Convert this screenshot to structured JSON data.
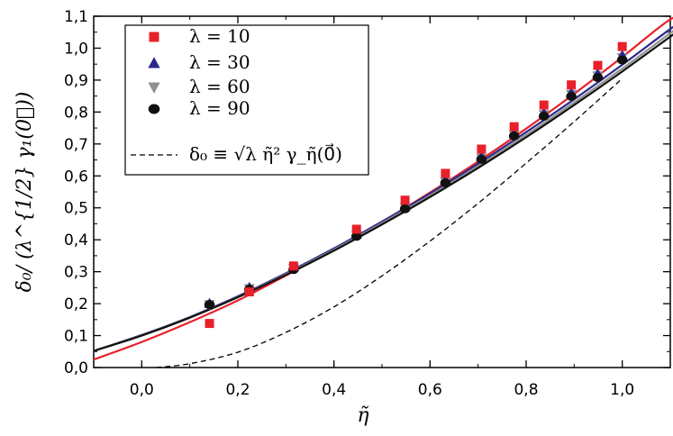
{
  "chart_data": {
    "type": "scatter",
    "xlabel": "η̃",
    "ylabel": "δ₀/ (λ^{1/2} γ₁(0⃗))",
    "xlim": [
      -0.1,
      1.1
    ],
    "ylim": [
      0.0,
      1.1
    ],
    "x_ticks": [
      "0,0",
      "0,2",
      "0,4",
      "0,6",
      "0,8",
      "1,0"
    ],
    "y_ticks": [
      "0,0",
      "0,1",
      "0,2",
      "0,3",
      "0,4",
      "0,5",
      "0,6",
      "0,7",
      "0,8",
      "0,9",
      "1,0",
      "1,1"
    ],
    "grid": false,
    "legend_position": "top-left",
    "series": [
      {
        "name": "λ = 10",
        "color": "#e8202a",
        "marker": "square",
        "x": [
          0.141,
          0.224,
          0.316,
          0.447,
          0.548,
          0.632,
          0.707,
          0.775,
          0.837,
          0.894,
          0.949,
          1.0
        ],
        "y": [
          0.138,
          0.237,
          0.318,
          0.433,
          0.524,
          0.608,
          0.684,
          0.754,
          0.822,
          0.885,
          0.946,
          1.005
        ],
        "fit": [
          0.025,
          0.08,
          0.142,
          0.21,
          0.288,
          0.37,
          0.456,
          0.548,
          0.645,
          0.748,
          0.857,
          0.972,
          1.09,
          1.14
        ]
      },
      {
        "name": "λ = 30",
        "color": "#2a2a8c",
        "marker": "triangle-up",
        "x": [
          0.141,
          0.224,
          0.316,
          0.447,
          0.548,
          0.632,
          0.707,
          0.775,
          0.837,
          0.894,
          0.949,
          1.0
        ],
        "y": [
          0.201,
          0.251,
          0.316,
          0.418,
          0.504,
          0.587,
          0.661,
          0.733,
          0.797,
          0.861,
          0.921,
          0.978
        ],
        "fit": [
          0.052,
          0.102,
          0.158,
          0.223,
          0.295,
          0.373,
          0.457,
          0.545,
          0.638,
          0.737,
          0.84,
          0.948,
          1.06,
          1.1
        ]
      },
      {
        "name": "λ = 60",
        "color": "#909090",
        "marker": "triangle-down",
        "x": [
          0.141,
          0.224,
          0.316,
          0.447,
          0.548,
          0.632,
          0.707,
          0.775,
          0.837,
          0.894,
          0.949,
          1.0
        ],
        "y": [
          0.197,
          0.247,
          0.31,
          0.414,
          0.5,
          0.581,
          0.655,
          0.728,
          0.792,
          0.855,
          0.913,
          0.97
        ],
        "fit": [
          0.052,
          0.101,
          0.157,
          0.221,
          0.292,
          0.369,
          0.452,
          0.539,
          0.631,
          0.728,
          0.83,
          0.936,
          1.047,
          1.09
        ]
      },
      {
        "name": "λ = 90",
        "color": "#111111",
        "marker": "circle",
        "x": [
          0.141,
          0.224,
          0.316,
          0.447,
          0.548,
          0.632,
          0.707,
          0.775,
          0.837,
          0.894,
          0.949,
          1.0
        ],
        "y": [
          0.197,
          0.245,
          0.307,
          0.411,
          0.497,
          0.578,
          0.652,
          0.725,
          0.787,
          0.849,
          0.908,
          0.963
        ],
        "fit": [
          0.052,
          0.1,
          0.156,
          0.22,
          0.29,
          0.366,
          0.448,
          0.534,
          0.625,
          0.721,
          0.822,
          0.927,
          1.036,
          1.08
        ]
      }
    ],
    "fit_x": [
      -0.1,
      0.0,
      0.1,
      0.2,
      0.3,
      0.4,
      0.5,
      0.6,
      0.7,
      0.8,
      0.9,
      1.0,
      1.1,
      1.14
    ],
    "reference_curve": {
      "name": "δ₀ ≡ √λ η̃² γ_η̃(0⃗)",
      "color": "#000000",
      "style": "dashed",
      "x": [
        0.03,
        0.1,
        0.2,
        0.3,
        0.4,
        0.5,
        0.6,
        0.7,
        0.8,
        0.9,
        1.0
      ],
      "y": [
        0.0,
        0.012,
        0.048,
        0.11,
        0.19,
        0.287,
        0.396,
        0.514,
        0.64,
        0.77,
        0.905
      ]
    },
    "legend_entries": [
      {
        "label": "λ = 10"
      },
      {
        "label": "λ = 30"
      },
      {
        "label": "λ = 60"
      },
      {
        "label": "λ = 90"
      },
      {
        "label": "δ₀ ≡ √λ η̃² γ_η̃(0⃗)"
      }
    ]
  }
}
